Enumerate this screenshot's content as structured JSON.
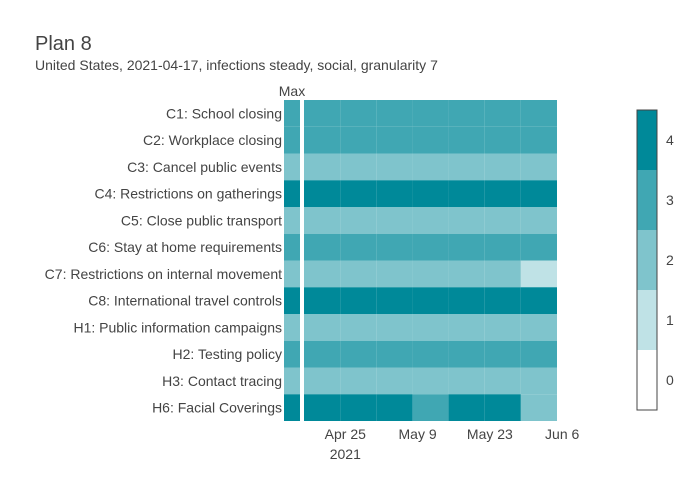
{
  "chart_data": {
    "type": "heatmap",
    "title": "Plan 8",
    "subtitle": "United States, 2021-04-17, infections steady, social, granularity 7",
    "max_label": "Max",
    "rows": [
      "C1: School closing",
      "C2: Workplace closing",
      "C3: Cancel public events",
      "C4: Restrictions on gatherings",
      "C5: Close public transport",
      "C6: Stay at home requirements",
      "C7: Restrictions on internal movement",
      "C8: International travel controls",
      "H1: Public information campaigns",
      "H2: Testing policy",
      "H3: Contact tracing",
      "H6: Facial Coverings"
    ],
    "max_values": [
      3,
      3,
      2,
      4,
      2,
      3,
      2,
      4,
      2,
      3,
      2,
      4
    ],
    "weeks": [
      "2021-04-17",
      "2021-04-24",
      "2021-05-01",
      "2021-05-08",
      "2021-05-15",
      "2021-05-22",
      "2021-05-29"
    ],
    "values": [
      [
        3,
        3,
        3,
        3,
        3,
        3,
        3
      ],
      [
        3,
        3,
        3,
        3,
        3,
        3,
        3
      ],
      [
        2,
        2,
        2,
        2,
        2,
        2,
        2
      ],
      [
        4,
        4,
        4,
        4,
        4,
        4,
        4
      ],
      [
        2,
        2,
        2,
        2,
        2,
        2,
        2
      ],
      [
        3,
        3,
        3,
        3,
        3,
        3,
        3
      ],
      [
        2,
        2,
        2,
        2,
        2,
        2,
        1
      ],
      [
        4,
        4,
        4,
        4,
        4,
        4,
        4
      ],
      [
        2,
        2,
        2,
        2,
        2,
        2,
        2
      ],
      [
        3,
        3,
        3,
        3,
        3,
        3,
        3
      ],
      [
        2,
        2,
        2,
        2,
        2,
        2,
        2
      ],
      [
        4,
        4,
        4,
        3,
        4,
        4,
        2
      ]
    ],
    "x_ticks": [
      {
        "date": "2021-04-25",
        "label": "Apr 25",
        "sublabel": "2021"
      },
      {
        "date": "2021-05-09",
        "label": "May 9",
        "sublabel": ""
      },
      {
        "date": "2021-05-23",
        "label": "May 23",
        "sublabel": ""
      },
      {
        "date": "2021-06-06",
        "label": "Jun 6",
        "sublabel": ""
      }
    ],
    "x_range": [
      "2021-04-17",
      "2021-06-05"
    ],
    "colorscale": {
      "min": 0,
      "max": 4,
      "ticks": [
        0,
        1,
        2,
        3,
        4
      ],
      "colors": [
        "#ffffff",
        "#bfe2e6",
        "#7fc4cc",
        "#40a7b3",
        "#008999"
      ]
    }
  }
}
